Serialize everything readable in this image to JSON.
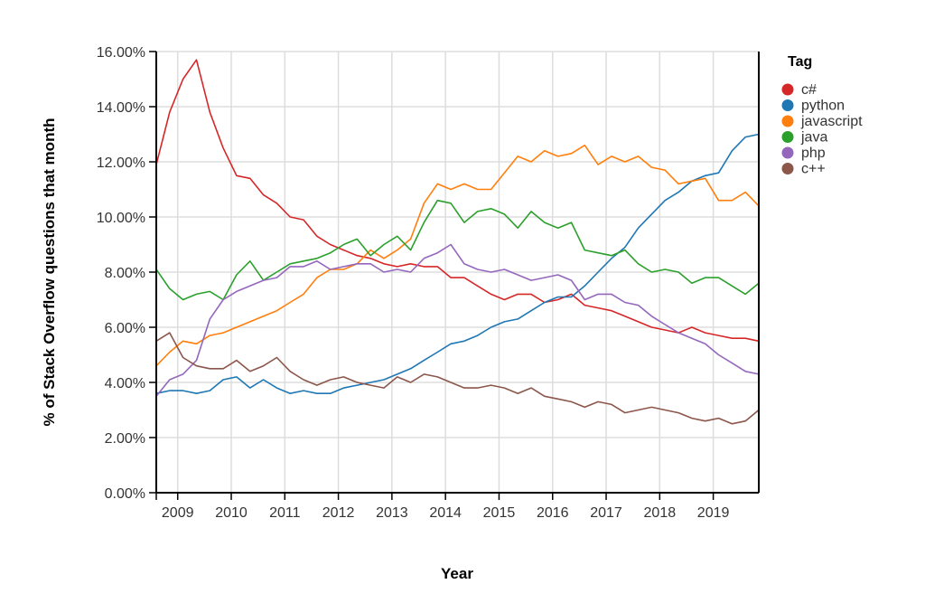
{
  "chart_data": {
    "type": "line",
    "title": "",
    "xlabel": "Year",
    "ylabel": "% of Stack Overflow questions that month",
    "xlim": [
      2008.6,
      2019.85
    ],
    "ylim": [
      0,
      16
    ],
    "x_ticks": [
      "2009",
      "2010",
      "2011",
      "2012",
      "2013",
      "2014",
      "2015",
      "2016",
      "2017",
      "2018",
      "2019"
    ],
    "y_ticks": [
      "0.00%",
      "2.00%",
      "4.00%",
      "6.00%",
      "8.00%",
      "10.00%",
      "12.00%",
      "14.00%",
      "16.00%"
    ],
    "grid": true,
    "legend_title": "Tag",
    "legend_position": "right",
    "x": [
      2008.6,
      2008.85,
      2009.1,
      2009.35,
      2009.6,
      2009.85,
      2010.1,
      2010.35,
      2010.6,
      2010.85,
      2011.1,
      2011.35,
      2011.6,
      2011.85,
      2012.1,
      2012.35,
      2012.6,
      2012.85,
      2013.1,
      2013.35,
      2013.6,
      2013.85,
      2014.1,
      2014.35,
      2014.6,
      2014.85,
      2015.1,
      2015.35,
      2015.6,
      2015.85,
      2016.1,
      2016.35,
      2016.6,
      2016.85,
      2017.1,
      2017.35,
      2017.6,
      2017.85,
      2018.1,
      2018.35,
      2018.6,
      2018.85,
      2019.1,
      2019.35,
      2019.6,
      2019.85
    ],
    "series": [
      {
        "name": "c#",
        "color": "#d62728",
        "values": [
          11.9,
          13.8,
          15.0,
          15.7,
          13.8,
          12.5,
          11.5,
          11.4,
          10.8,
          10.5,
          10.0,
          9.9,
          9.3,
          9.0,
          8.8,
          8.6,
          8.5,
          8.3,
          8.2,
          8.3,
          8.2,
          8.2,
          7.8,
          7.8,
          7.5,
          7.2,
          7.0,
          7.2,
          7.2,
          6.9,
          7.0,
          7.2,
          6.8,
          6.7,
          6.6,
          6.4,
          6.2,
          6.0,
          5.9,
          5.8,
          6.0,
          5.8,
          5.7,
          5.6,
          5.6,
          5.5
        ]
      },
      {
        "name": "python",
        "color": "#1f77b4",
        "values": [
          3.6,
          3.7,
          3.7,
          3.6,
          3.7,
          4.1,
          4.2,
          3.8,
          4.1,
          3.8,
          3.6,
          3.7,
          3.6,
          3.6,
          3.8,
          3.9,
          4.0,
          4.1,
          4.3,
          4.5,
          4.8,
          5.1,
          5.4,
          5.5,
          5.7,
          6.0,
          6.2,
          6.3,
          6.6,
          6.9,
          7.1,
          7.1,
          7.5,
          8.0,
          8.5,
          8.9,
          9.6,
          10.1,
          10.6,
          10.9,
          11.3,
          11.5,
          11.6,
          12.4,
          12.9,
          13.0
        ]
      },
      {
        "name": "javascript",
        "color": "#ff7f0e",
        "values": [
          4.6,
          5.1,
          5.5,
          5.4,
          5.7,
          5.8,
          6.0,
          6.2,
          6.4,
          6.6,
          6.9,
          7.2,
          7.8,
          8.1,
          8.1,
          8.3,
          8.8,
          8.5,
          8.8,
          9.2,
          10.5,
          11.2,
          11.0,
          11.2,
          11.0,
          11.0,
          11.6,
          12.2,
          12.0,
          12.4,
          12.2,
          12.3,
          12.6,
          11.9,
          12.2,
          12.0,
          12.2,
          11.8,
          11.7,
          11.2,
          11.3,
          11.4,
          10.6,
          10.6,
          10.9,
          10.4
        ]
      },
      {
        "name": "java",
        "color": "#2ca02c",
        "values": [
          8.1,
          7.4,
          7.0,
          7.2,
          7.3,
          7.0,
          7.9,
          8.4,
          7.7,
          8.0,
          8.3,
          8.4,
          8.5,
          8.7,
          9.0,
          9.2,
          8.6,
          9.0,
          9.3,
          8.8,
          9.8,
          10.6,
          10.5,
          9.8,
          10.2,
          10.3,
          10.1,
          9.6,
          10.2,
          9.8,
          9.6,
          9.8,
          8.8,
          8.7,
          8.6,
          8.8,
          8.3,
          8.0,
          8.1,
          8.0,
          7.6,
          7.8,
          7.8,
          7.5,
          7.2,
          7.6
        ]
      },
      {
        "name": "php",
        "color": "#9467bd",
        "values": [
          3.5,
          4.1,
          4.3,
          4.8,
          6.3,
          7.0,
          7.3,
          7.5,
          7.7,
          7.8,
          8.2,
          8.2,
          8.4,
          8.1,
          8.2,
          8.3,
          8.3,
          8.0,
          8.1,
          8.0,
          8.5,
          8.7,
          9.0,
          8.3,
          8.1,
          8.0,
          8.1,
          7.9,
          7.7,
          7.8,
          7.9,
          7.7,
          7.0,
          7.2,
          7.2,
          6.9,
          6.8,
          6.4,
          6.1,
          5.8,
          5.6,
          5.4,
          5.0,
          4.7,
          4.4,
          4.3
        ]
      },
      {
        "name": "c++",
        "color": "#8c564b",
        "values": [
          5.5,
          5.8,
          4.9,
          4.6,
          4.5,
          4.5,
          4.8,
          4.4,
          4.6,
          4.9,
          4.4,
          4.1,
          3.9,
          4.1,
          4.2,
          4.0,
          3.9,
          3.8,
          4.2,
          4.0,
          4.3,
          4.2,
          4.0,
          3.8,
          3.8,
          3.9,
          3.8,
          3.6,
          3.8,
          3.5,
          3.4,
          3.3,
          3.1,
          3.3,
          3.2,
          2.9,
          3.0,
          3.1,
          3.0,
          2.9,
          2.7,
          2.6,
          2.7,
          2.5,
          2.6,
          3.0
        ]
      }
    ]
  }
}
